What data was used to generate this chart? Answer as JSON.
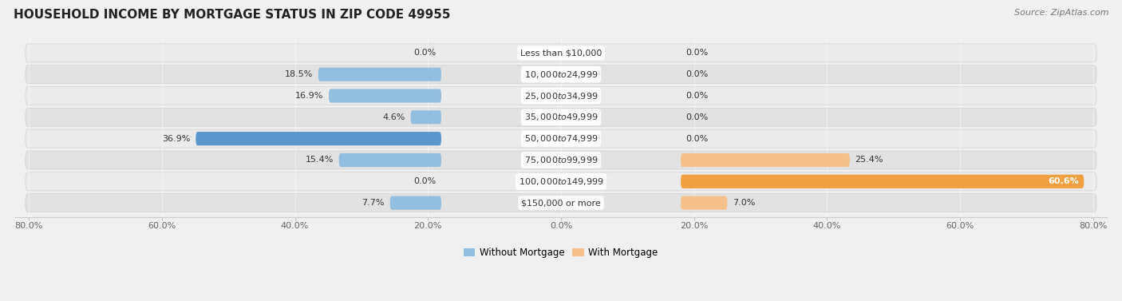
{
  "title": "HOUSEHOLD INCOME BY MORTGAGE STATUS IN ZIP CODE 49955",
  "source": "Source: ZipAtlas.com",
  "categories": [
    "Less than $10,000",
    "$10,000 to $24,999",
    "$25,000 to $34,999",
    "$35,000 to $49,999",
    "$50,000 to $74,999",
    "$75,000 to $99,999",
    "$100,000 to $149,999",
    "$150,000 or more"
  ],
  "without_mortgage": [
    0.0,
    18.5,
    16.9,
    4.6,
    36.9,
    15.4,
    0.0,
    7.7
  ],
  "with_mortgage": [
    0.0,
    0.0,
    0.0,
    0.0,
    0.0,
    25.4,
    60.6,
    7.0
  ],
  "color_without": "#92bfdf",
  "color_with": "#f5c08a",
  "color_without_dark": "#5b96cc",
  "color_with_dark": "#f0a040",
  "xlim_left": 80.0,
  "xlim_right": 80.0,
  "label_region": 18.0,
  "bg_color": "#f0f0f0",
  "row_color_odd": "#ebebeb",
  "row_color_even": "#e2e2e2",
  "title_fontsize": 11,
  "source_fontsize": 8,
  "tick_fontsize": 8,
  "label_fontsize": 8,
  "category_fontsize": 8,
  "legend_fontsize": 8.5
}
